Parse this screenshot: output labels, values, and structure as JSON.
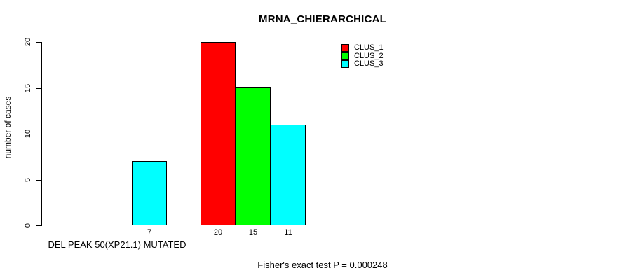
{
  "chart_data": {
    "type": "bar",
    "title": "MRNA_CHIERARCHICAL",
    "ylabel": "number of cases",
    "xlabel": "DEL PEAK 50(XP21.1) MUTATED",
    "annotation": "Fisher's exact test P = 0.000248",
    "categories": [
      "DEL PEAK 50(XP21.1) MUTATED",
      ""
    ],
    "series": [
      {
        "name": "CLUS_1",
        "color": "#ff0000",
        "values": [
          0,
          20
        ]
      },
      {
        "name": "CLUS_2",
        "color": "#00ff00",
        "values": [
          0,
          15
        ]
      },
      {
        "name": "CLUS_3",
        "color": "#00ffff",
        "values": [
          7,
          11
        ]
      }
    ],
    "bar_value_labels_shown": [
      7,
      20,
      15,
      11
    ],
    "yticks": [
      0,
      5,
      10,
      15,
      20
    ],
    "ylim": [
      0,
      20
    ],
    "grid": false,
    "legend_position": "top-right",
    "axis_color": "#000000",
    "background": "#ffffff"
  }
}
